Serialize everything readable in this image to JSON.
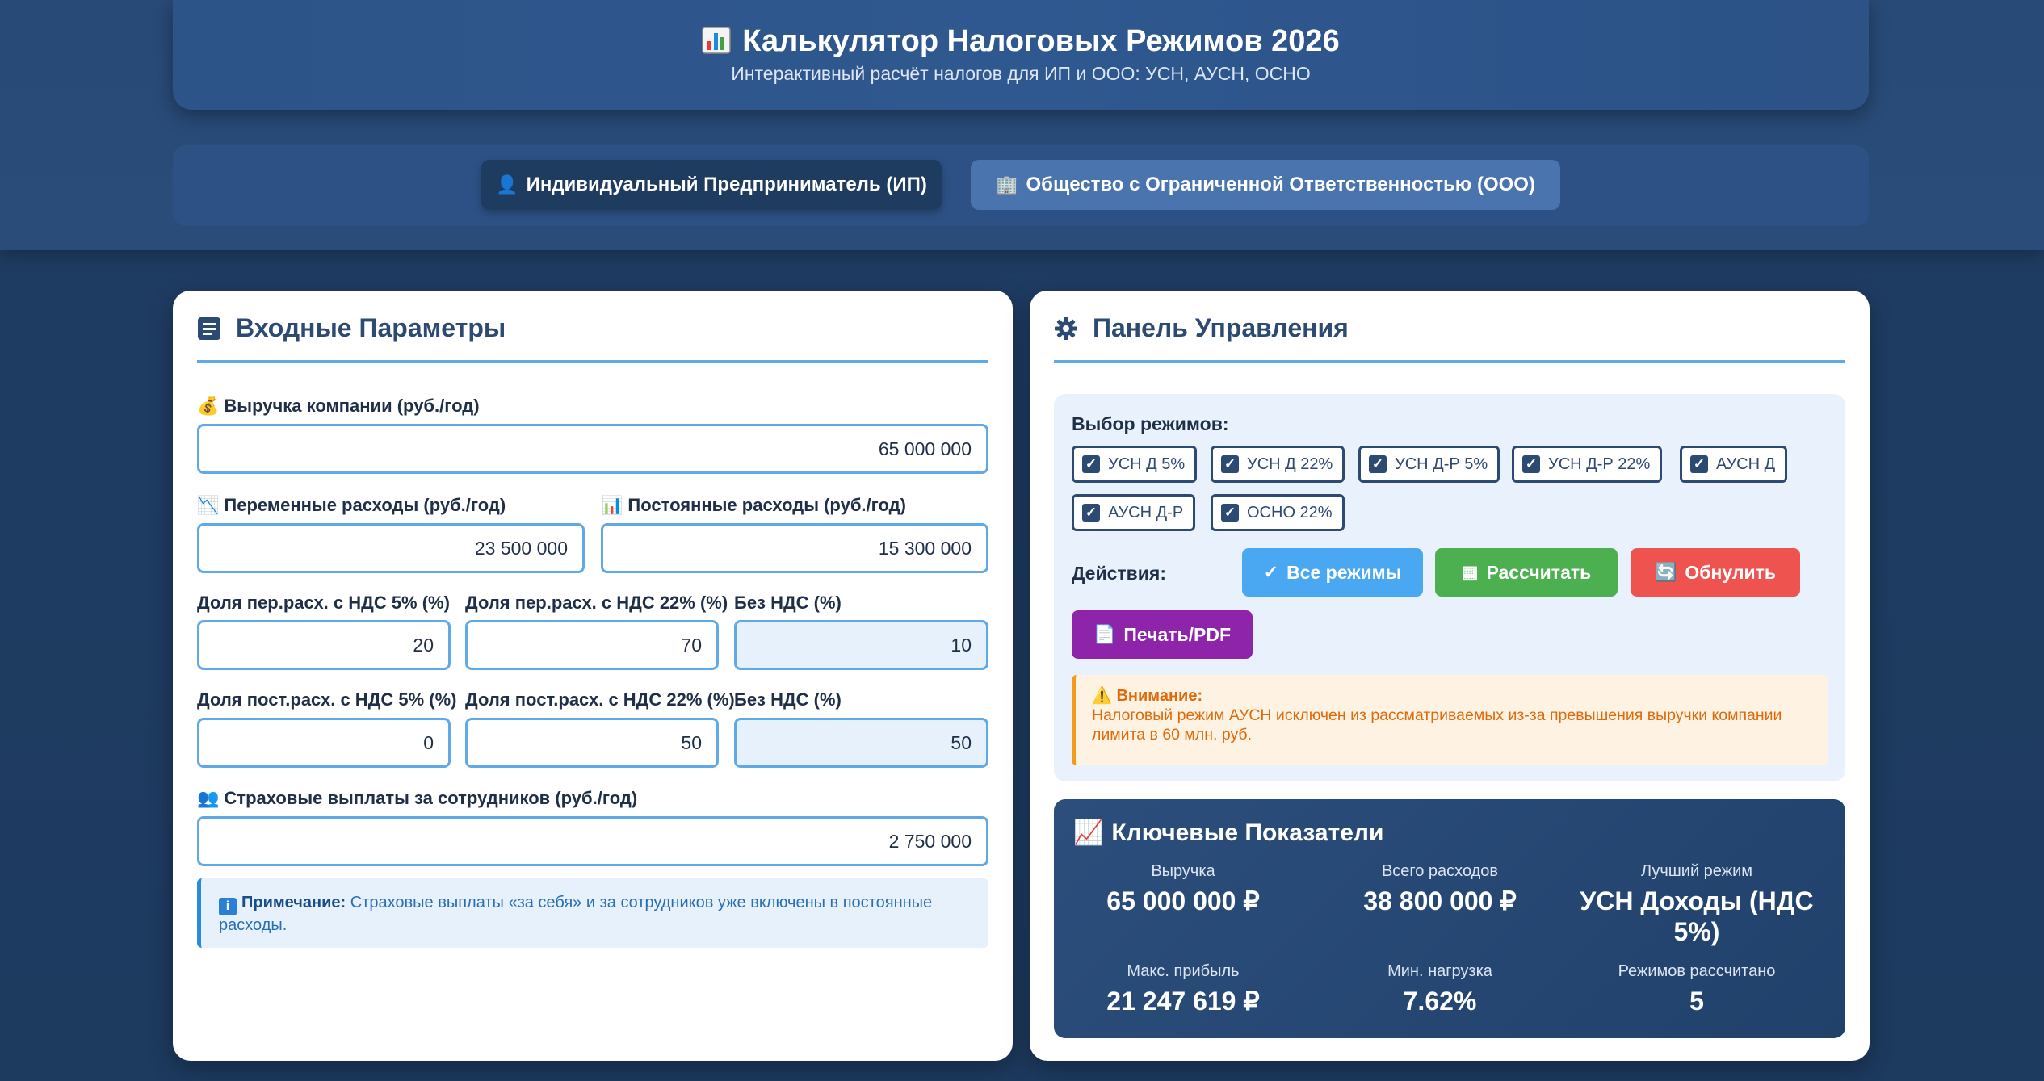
{
  "header": {
    "title": "Калькулятор Налоговых Режимов 2026",
    "subtitle": "Интерактивный расчёт налогов для ИП и ООО: УСН, АУСН, ОСНО"
  },
  "entity_types": {
    "ip": "Индивидуальный Предприниматель (ИП)",
    "ooo": "Общество с Ограниченной Ответственностью (ООО)"
  },
  "inputs": {
    "title": "Входные Параметры",
    "revenue_label": "Выручка компании (руб./год)",
    "revenue_value": "65 000 000",
    "var_exp_label": "Переменные расходы (руб./год)",
    "var_exp_value": "23 500 000",
    "fix_exp_label": "Постоянные расходы (руб./год)",
    "fix_exp_value": "15 300 000",
    "var_vat5_label": "Доля пер.расх. с НДС 5% (%)",
    "var_vat5_value": "20",
    "var_vat22_label": "Доля пер.расх. с НДС 22% (%)",
    "var_vat22_value": "70",
    "var_novat_label": "Без НДС (%)",
    "var_novat_value": "10",
    "fix_vat5_label": "Доля пост.расх. с НДС 5% (%)",
    "fix_vat5_value": "0",
    "fix_vat22_label": "Доля пост.расх. с НДС 22% (%)",
    "fix_vat22_value": "50",
    "fix_novat_label": "Без НДС (%)",
    "fix_novat_value": "50",
    "insurance_label": "Страховые выплаты за сотрудников (руб./год)",
    "insurance_value": "2 750 000",
    "note_bold": "Примечание:",
    "note_text": " Страховые выплаты «за себя» и за сотрудников уже включены в постоянные расходы."
  },
  "control": {
    "title": "Панель Управления",
    "modes_label": "Выбор режимов:",
    "modes": [
      "УСН Д 5%",
      "УСН Д 22%",
      "УСН Д-Р 5%",
      "УСН Д-Р 22%",
      "АУСН Д",
      "АУСН Д-Р",
      "ОСНО 22%"
    ],
    "actions_label": "Действия:",
    "btn_all": "Все режимы",
    "btn_calc": "Рассчитать",
    "btn_reset": "Обнулить",
    "btn_print": "Печать/PDF",
    "warning_title": "Внимание:",
    "warning_text": "Налоговый режим АУСН исключен из рассматриваемых из-за превышения выручки компании лимита в 60 млн. руб."
  },
  "kpi": {
    "title": "Ключевые Показатели",
    "revenue_label": "Выручка",
    "revenue_value": "65 000 000 ₽",
    "expenses_label": "Всего расходов",
    "expenses_value": "38 800 000 ₽",
    "best_label": "Лучший режим",
    "best_value": "УСН Доходы (НДС 5%)",
    "profit_label": "Макс. прибыль",
    "profit_value": "21 247 619 ₽",
    "load_label": "Мин. нагрузка",
    "load_value": "7.62%",
    "count_label": "Режимов рассчитано",
    "count_value": "5"
  },
  "colors": {
    "accent": "#5ea9e6",
    "btn_all": "#4aa8f2",
    "btn_calc": "#4caf50",
    "btn_reset": "#ef5350",
    "btn_print": "#8e24aa"
  }
}
